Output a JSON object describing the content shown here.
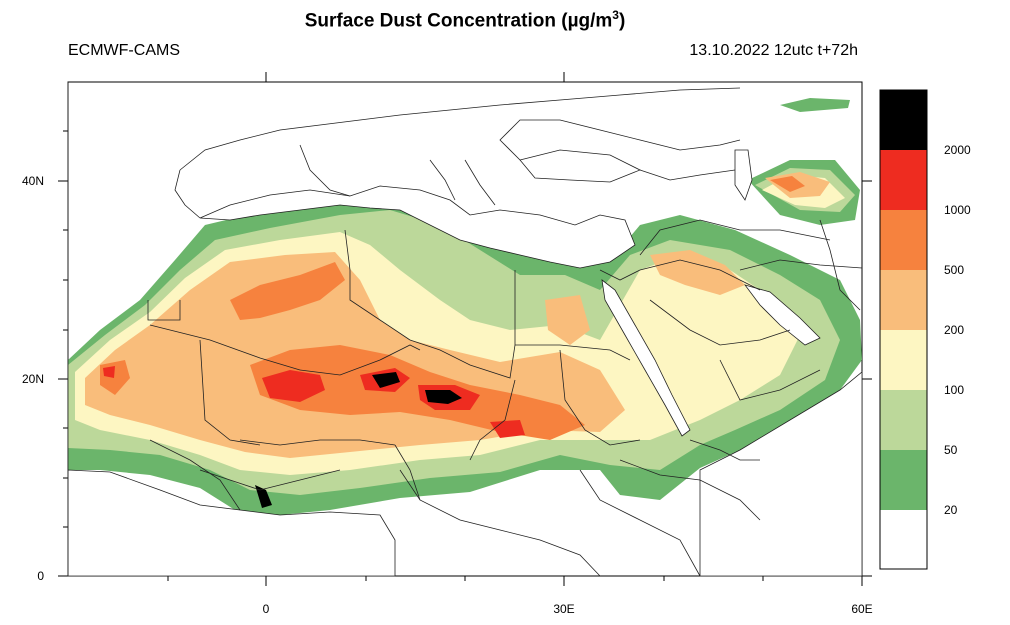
{
  "title": {
    "main": "Surface Dust Concentration (",
    "unit_mu": "µg/m",
    "unit_exp": "3",
    "close": ")"
  },
  "model": "ECMWF-CAMS",
  "run": "13.10.2022 12utc t+72h",
  "axes": {
    "yticks": [
      "40N",
      "20N",
      "0"
    ],
    "xticks": [
      "0",
      "30E",
      "60E"
    ]
  },
  "legend": {
    "levels": [
      "2000",
      "1000",
      "500",
      "200",
      "100",
      "50",
      "20"
    ],
    "colors": [
      "#000000",
      "#ee2c20",
      "#f6823e",
      "#f9bd7b",
      "#fdf6c2",
      "#bcd89a",
      "#6bb56b",
      "#ffffff"
    ]
  },
  "colors": {
    "ocean": "#ffffff",
    "border": "#222222",
    "frame": "#000000"
  }
}
